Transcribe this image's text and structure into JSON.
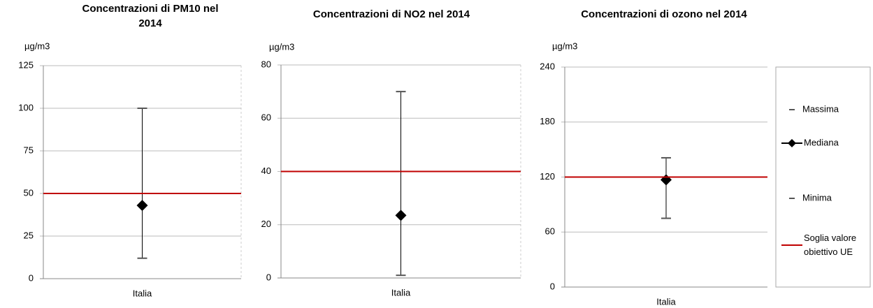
{
  "chart_data": [
    {
      "type": "errorbar",
      "title": "Concentrazioni di PM10 nel 2014",
      "ylabel": "µg/m3",
      "categories": [
        "Italia"
      ],
      "series": [
        {
          "values": [
            100
          ],
          "color": "#555555"
        },
        {
          "values": [
            43
          ],
          "color": "#000000"
        },
        {
          "values": [
            12
          ],
          "color": "#555555"
        }
      ],
      "threshold": {
        "value": 50,
        "color": "#c00000"
      },
      "ylim": [
        0,
        125
      ],
      "yticks": [
        0,
        25,
        50,
        75,
        100,
        125
      ],
      "grid": true,
      "legend": false
    },
    {
      "type": "errorbar",
      "title": "Concentrazioni di NO2 nel 2014",
      "ylabel": "µg/m3",
      "categories": [
        "Italia"
      ],
      "series": [
        {
          "values": [
            70
          ],
          "color": "#555555"
        },
        {
          "values": [
            23.5
          ],
          "color": "#000000"
        },
        {
          "values": [
            1
          ],
          "color": "#555555"
        }
      ],
      "threshold": {
        "value": 40,
        "color": "#c00000"
      },
      "ylim": [
        0,
        80
      ],
      "yticks": [
        0,
        20,
        40,
        60,
        80
      ],
      "grid": true,
      "legend": false
    },
    {
      "type": "errorbar",
      "title": "Concentrazioni di ozono nel 2014",
      "ylabel": "µg/m3",
      "categories": [
        "Italia"
      ],
      "series": [
        {
          "name": "Massima",
          "values": [
            141
          ],
          "color": "#555555"
        },
        {
          "name": "Mediana",
          "values": [
            117
          ],
          "color": "#000000"
        },
        {
          "name": "Minima",
          "values": [
            75
          ],
          "color": "#555555"
        }
      ],
      "threshold": {
        "name": "Soglia valore obiettivo UE",
        "value": 120,
        "color": "#c00000"
      },
      "ylim": [
        0,
        240
      ],
      "yticks": [
        0,
        60,
        120,
        180,
        240
      ],
      "grid": true,
      "legend": true
    }
  ]
}
